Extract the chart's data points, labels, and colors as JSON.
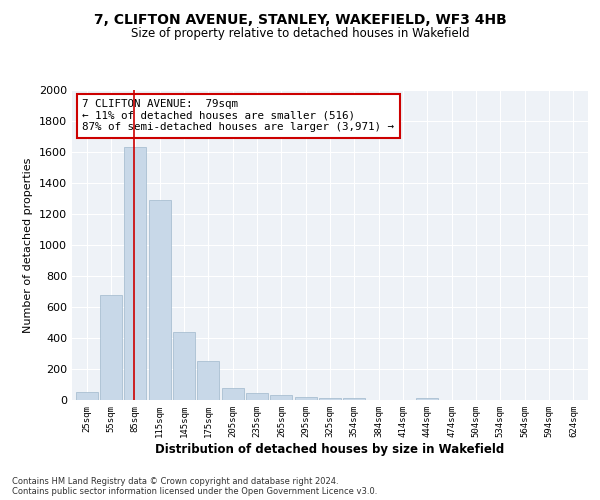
{
  "title": "7, CLIFTON AVENUE, STANLEY, WAKEFIELD, WF3 4HB",
  "subtitle": "Size of property relative to detached houses in Wakefield",
  "xlabel": "Distribution of detached houses by size in Wakefield",
  "ylabel": "Number of detached properties",
  "categories": [
    "25sqm",
    "55sqm",
    "85sqm",
    "115sqm",
    "145sqm",
    "175sqm",
    "205sqm",
    "235sqm",
    "265sqm",
    "295sqm",
    "325sqm",
    "354sqm",
    "384sqm",
    "414sqm",
    "444sqm",
    "474sqm",
    "504sqm",
    "534sqm",
    "564sqm",
    "594sqm",
    "624sqm"
  ],
  "values": [
    50,
    680,
    1630,
    1290,
    440,
    250,
    80,
    45,
    30,
    20,
    15,
    10,
    0,
    0,
    15,
    0,
    0,
    0,
    0,
    0,
    0
  ],
  "bar_color": "#c8d8e8",
  "bar_edge_color": "#a0b8cc",
  "vline_color": "#cc0000",
  "annotation_text": "7 CLIFTON AVENUE:  79sqm\n← 11% of detached houses are smaller (516)\n87% of semi-detached houses are larger (3,971) →",
  "annotation_box_color": "#ffffff",
  "annotation_box_edge": "#cc0000",
  "background_color": "#eef2f7",
  "ylim": [
    0,
    2000
  ],
  "yticks": [
    0,
    200,
    400,
    600,
    800,
    1000,
    1200,
    1400,
    1600,
    1800,
    2000
  ],
  "footnote1": "Contains HM Land Registry data © Crown copyright and database right 2024.",
  "footnote2": "Contains public sector information licensed under the Open Government Licence v3.0."
}
